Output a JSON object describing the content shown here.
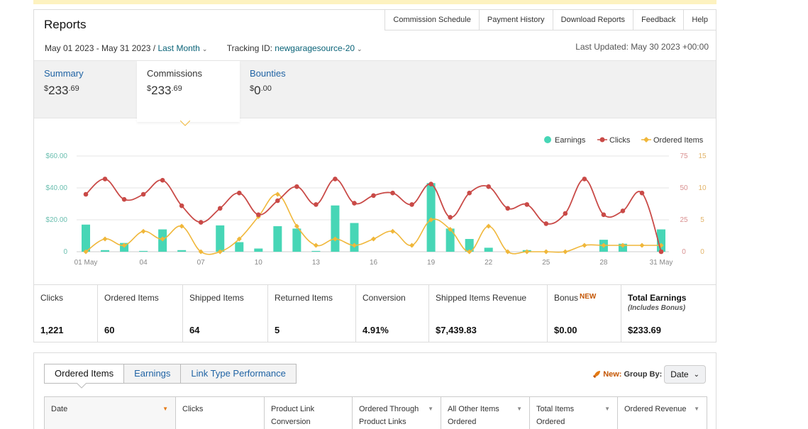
{
  "header": {
    "title": "Reports",
    "links": [
      "Commission Schedule",
      "Payment History",
      "Download Reports",
      "Feedback",
      "Help"
    ]
  },
  "filters": {
    "date_range": "May 01 2023 - May 31 2023 /",
    "date_preset": "Last Month",
    "tracking_label": "Tracking ID:",
    "tracking_id": "newgaragesource-20",
    "last_updated": "Last Updated: May 30 2023 +00:00"
  },
  "summary_tabs": [
    {
      "label": "Summary",
      "currency": "$",
      "whole": "233",
      "cents": ".69"
    },
    {
      "label": "Commissions",
      "currency": "$",
      "whole": "233",
      "cents": ".69"
    },
    {
      "label": "Bounties",
      "currency": "$",
      "whole": "0",
      "cents": ".00"
    }
  ],
  "chart_data": {
    "type": "bar+line",
    "x": [
      "01 May",
      "02",
      "03",
      "04",
      "05",
      "06",
      "07",
      "08",
      "09",
      "10",
      "11",
      "12",
      "13",
      "14",
      "15",
      "16",
      "17",
      "18",
      "19",
      "20",
      "21",
      "22",
      "23",
      "24",
      "25",
      "26",
      "27",
      "28",
      "29",
      "30",
      "31 May"
    ],
    "x_tick_labels": [
      "01 May",
      "04",
      "07",
      "10",
      "13",
      "16",
      "19",
      "22",
      "25",
      "28",
      "31 May"
    ],
    "legend": [
      "Earnings",
      "Clicks",
      "Ordered Items"
    ],
    "legend_position": "top-right",
    "series": [
      {
        "name": "Earnings",
        "kind": "bar",
        "axis": "left",
        "color": "#47d6b6",
        "values": [
          17,
          1,
          5.5,
          0.5,
          14,
          1,
          0,
          16.5,
          6,
          2,
          16,
          14.5,
          0.5,
          29,
          18,
          0,
          0,
          0,
          43,
          14.5,
          8,
          2.5,
          0,
          1,
          0,
          0,
          0,
          7.5,
          5,
          0,
          14
        ]
      },
      {
        "name": "Clicks",
        "kind": "line",
        "axis": "right1",
        "color": "#c94a47",
        "values": [
          45,
          57,
          41,
          45,
          56,
          36,
          23,
          34,
          46,
          29,
          40,
          51,
          37,
          57,
          38,
          44,
          46,
          37,
          53,
          27,
          46,
          51,
          34,
          37,
          22,
          30,
          57,
          29,
          32,
          46,
          0
        ]
      },
      {
        "name": "Ordered Items",
        "kind": "line",
        "axis": "right2",
        "color": "#f0b73a",
        "values": [
          0,
          2,
          1,
          3.2,
          2,
          4,
          0,
          0,
          2,
          5.5,
          9,
          4,
          1,
          2,
          1,
          2,
          3.2,
          1,
          5,
          3.5,
          0,
          4,
          0,
          0,
          0,
          0,
          1,
          1,
          1,
          1,
          1
        ]
      }
    ],
    "y_left": {
      "ticks": [
        "$60.00",
        "$40.00",
        "$20.00",
        "0"
      ],
      "range": [
        0,
        60
      ]
    },
    "y_right1": {
      "ticks": [
        "75",
        "50",
        "25",
        "0"
      ],
      "range": [
        0,
        75
      ]
    },
    "y_right2": {
      "ticks": [
        "15",
        "10",
        "5",
        "0"
      ],
      "range": [
        0,
        15
      ]
    },
    "grid": true
  },
  "stats": [
    {
      "label": "Clicks",
      "value": "1,221"
    },
    {
      "label": "Ordered Items",
      "value": "60"
    },
    {
      "label": "Shipped Items",
      "value": "64"
    },
    {
      "label": "Returned Items",
      "value": "5"
    },
    {
      "label": "Conversion",
      "value": "4.91%"
    },
    {
      "label": "Shipped Items Revenue",
      "value": "$7,439.83"
    },
    {
      "label": "Bonus",
      "badge": "NEW",
      "value": "$0.00"
    },
    {
      "label": "Total Earnings",
      "sublabel": "(Includes Bonus)",
      "value": "$233.69"
    }
  ],
  "table_tabs": [
    "Ordered Items",
    "Earnings",
    "Link Type Performance"
  ],
  "group_by": {
    "new_label": "New:",
    "label": "Group By:",
    "value": "Date"
  },
  "table_columns": [
    {
      "line1": "Date",
      "line2": ""
    },
    {
      "line1": "Clicks",
      "line2": ""
    },
    {
      "line1": "Product Link",
      "line2": "Conversion"
    },
    {
      "line1": "Ordered Through",
      "line2": "Product Links"
    },
    {
      "line1": "All Other Items",
      "line2": "Ordered"
    },
    {
      "line1": "Total Items",
      "line2": "Ordered"
    },
    {
      "line1": "Ordered Revenue",
      "line2": ""
    }
  ],
  "colors": {
    "link": "#0a6378",
    "tab_link": "#1f63a4",
    "accent_orange": "#c45500"
  }
}
